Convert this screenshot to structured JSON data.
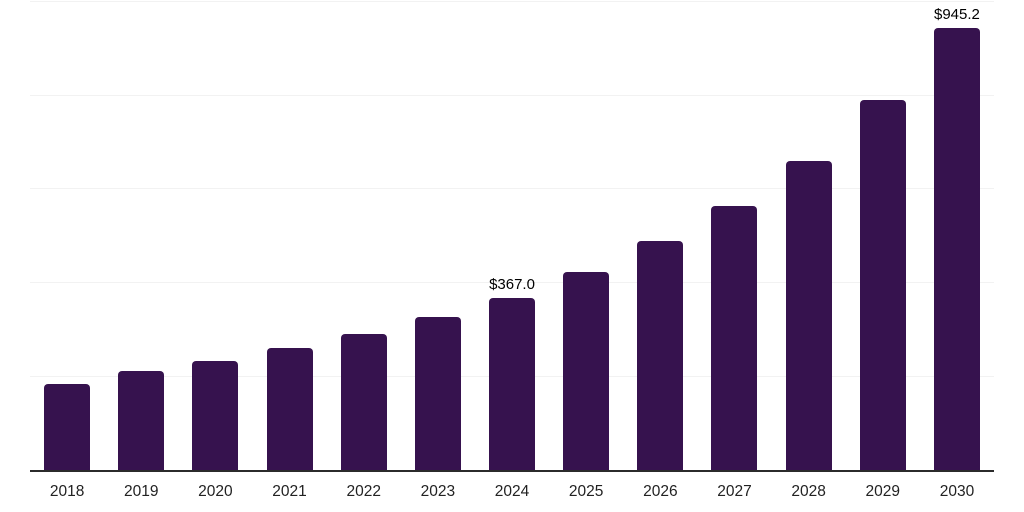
{
  "chart_data": {
    "type": "bar",
    "categories": [
      "2018",
      "2019",
      "2020",
      "2021",
      "2022",
      "2023",
      "2024",
      "2025",
      "2026",
      "2027",
      "2028",
      "2029",
      "2030"
    ],
    "values": [
      185,
      211,
      233,
      261,
      290,
      328,
      367.0,
      424,
      490,
      565,
      662,
      791,
      945.2
    ],
    "data_labels": [
      "",
      "",
      "",
      "",
      "",
      "",
      "$367.0",
      "",
      "",
      "",
      "",
      "",
      "$945.2"
    ],
    "title": "",
    "xlabel": "",
    "ylabel": "",
    "ylim": [
      0,
      1000
    ],
    "gridline_values": [
      200,
      400,
      600,
      800,
      1000
    ],
    "grid": "horizontal-only",
    "legend": "none",
    "y_axis_labels_visible": false,
    "colors": {
      "bar": "#36124E",
      "axis_line": "#2B2B2B",
      "gridline": "#F2F2F2",
      "data_label": "#000000",
      "tick_label": "#222222",
      "background": "#FFFFFF"
    }
  }
}
